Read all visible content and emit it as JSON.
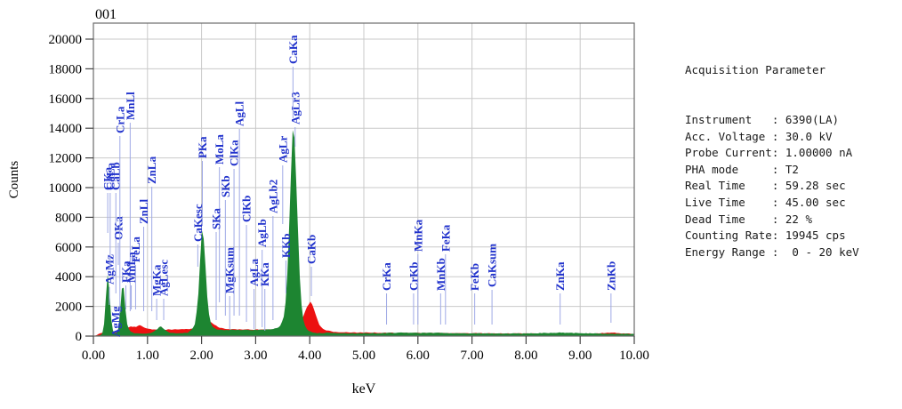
{
  "title": "001",
  "axes": {
    "x_label": "keV",
    "y_label": "Counts",
    "x_ticks": [
      "0.00",
      "1.00",
      "2.00",
      "3.00",
      "4.00",
      "5.00",
      "6.00",
      "7.00",
      "8.00",
      "9.00",
      "10.00"
    ],
    "y_ticks": [
      "0",
      "2000",
      "4000",
      "6000",
      "8000",
      "10000",
      "12000",
      "14000",
      "16000",
      "18000",
      "20000"
    ]
  },
  "colors": {
    "series_green": "#1d8531",
    "series_red": "#ec1111",
    "label_blue": "#2233cc",
    "leader_line": "#9fабe8",
    "leader": "#9fa9e6",
    "grid": "#c9c9c9",
    "border": "#6b6b6b",
    "tick": "#444444",
    "axis_text": "#000000"
  },
  "chart_data": {
    "type": "area",
    "title": "001",
    "xlabel": "keV",
    "ylabel": "Counts",
    "x_range": [
      0,
      10
    ],
    "y_range": [
      0,
      20000
    ],
    "grid": true,
    "series": [
      {
        "name": "spectrum-red",
        "color": "#ec1111",
        "points": [
          [
            0,
            30
          ],
          [
            0.05,
            60
          ],
          [
            0.1,
            150
          ],
          [
            0.15,
            220
          ],
          [
            0.2,
            260
          ],
          [
            0.28,
            240
          ],
          [
            0.35,
            230
          ],
          [
            0.42,
            260
          ],
          [
            0.5,
            330
          ],
          [
            0.58,
            450
          ],
          [
            0.65,
            620
          ],
          [
            0.7,
            700
          ],
          [
            0.75,
            620
          ],
          [
            0.8,
            650
          ],
          [
            0.85,
            720
          ],
          [
            0.9,
            640
          ],
          [
            0.97,
            520
          ],
          [
            1.05,
            470
          ],
          [
            1.15,
            440
          ],
          [
            1.3,
            430
          ],
          [
            1.5,
            450
          ],
          [
            1.7,
            460
          ],
          [
            1.85,
            500
          ],
          [
            1.95,
            560
          ],
          [
            2.05,
            700
          ],
          [
            2.12,
            900
          ],
          [
            2.17,
            950
          ],
          [
            2.22,
            820
          ],
          [
            2.3,
            620
          ],
          [
            2.4,
            520
          ],
          [
            2.5,
            470
          ],
          [
            2.7,
            450
          ],
          [
            2.9,
            440
          ],
          [
            3.1,
            440
          ],
          [
            3.3,
            460
          ],
          [
            3.5,
            520
          ],
          [
            3.65,
            620
          ],
          [
            3.78,
            800
          ],
          [
            3.88,
            1350
          ],
          [
            3.95,
            1950
          ],
          [
            4.01,
            2350
          ],
          [
            4.07,
            1900
          ],
          [
            4.13,
            1150
          ],
          [
            4.2,
            620
          ],
          [
            4.3,
            380
          ],
          [
            4.45,
            290
          ],
          [
            4.6,
            260
          ],
          [
            4.8,
            240
          ],
          [
            5.2,
            230
          ],
          [
            5.6,
            220
          ],
          [
            6.0,
            215
          ],
          [
            6.5,
            205
          ],
          [
            7.0,
            195
          ],
          [
            7.5,
            185
          ],
          [
            8.0,
            178
          ],
          [
            8.5,
            172
          ],
          [
            9.0,
            168
          ],
          [
            9.3,
            170
          ],
          [
            9.5,
            230
          ],
          [
            9.62,
            250
          ],
          [
            9.75,
            190
          ],
          [
            10,
            160
          ]
        ]
      },
      {
        "name": "spectrum-green",
        "color": "#1d8531",
        "points": [
          [
            0,
            30
          ],
          [
            0.1,
            50
          ],
          [
            0.13,
            60
          ],
          [
            0.17,
            200
          ],
          [
            0.2,
            900
          ],
          [
            0.23,
            2600
          ],
          [
            0.26,
            4250
          ],
          [
            0.29,
            3400
          ],
          [
            0.32,
            1500
          ],
          [
            0.35,
            500
          ],
          [
            0.38,
            220
          ],
          [
            0.42,
            180
          ],
          [
            0.45,
            300
          ],
          [
            0.48,
            900
          ],
          [
            0.51,
            2400
          ],
          [
            0.535,
            3650
          ],
          [
            0.56,
            3300
          ],
          [
            0.59,
            1900
          ],
          [
            0.62,
            900
          ],
          [
            0.66,
            450
          ],
          [
            0.7,
            280
          ],
          [
            0.76,
            200
          ],
          [
            0.82,
            170
          ],
          [
            0.9,
            160
          ],
          [
            1.0,
            170
          ],
          [
            1.1,
            260
          ],
          [
            1.18,
            480
          ],
          [
            1.24,
            640
          ],
          [
            1.3,
            520
          ],
          [
            1.36,
            300
          ],
          [
            1.45,
            210
          ],
          [
            1.55,
            190
          ],
          [
            1.65,
            190
          ],
          [
            1.75,
            240
          ],
          [
            1.82,
            450
          ],
          [
            1.87,
            700
          ],
          [
            1.9,
            1300
          ],
          [
            1.94,
            2800
          ],
          [
            1.97,
            5000
          ],
          [
            2.0,
            7000
          ],
          [
            2.013,
            7250
          ],
          [
            2.04,
            6400
          ],
          [
            2.07,
            4800
          ],
          [
            2.1,
            2900
          ],
          [
            2.13,
            1600
          ],
          [
            2.17,
            900
          ],
          [
            2.21,
            600
          ],
          [
            2.26,
            480
          ],
          [
            2.32,
            430
          ],
          [
            2.45,
            415
          ],
          [
            2.6,
            420
          ],
          [
            2.75,
            410
          ],
          [
            2.9,
            415
          ],
          [
            3.05,
            420
          ],
          [
            3.2,
            440
          ],
          [
            3.3,
            470
          ],
          [
            3.4,
            520
          ],
          [
            3.46,
            700
          ],
          [
            3.52,
            1300
          ],
          [
            3.56,
            2500
          ],
          [
            3.6,
            5200
          ],
          [
            3.64,
            9500
          ],
          [
            3.67,
            13000
          ],
          [
            3.692,
            14250
          ],
          [
            3.72,
            13200
          ],
          [
            3.76,
            9800
          ],
          [
            3.8,
            5200
          ],
          [
            3.84,
            2400
          ],
          [
            3.88,
            1100
          ],
          [
            3.92,
            600
          ],
          [
            3.97,
            380
          ],
          [
            4.02,
            280
          ],
          [
            4.1,
            200
          ],
          [
            4.25,
            210
          ],
          [
            4.4,
            230
          ],
          [
            4.55,
            200
          ],
          [
            4.7,
            180
          ],
          [
            4.9,
            185
          ],
          [
            5.1,
            190
          ],
          [
            5.3,
            195
          ],
          [
            5.45,
            210
          ],
          [
            5.6,
            230
          ],
          [
            5.75,
            235
          ],
          [
            5.9,
            220
          ],
          [
            6.1,
            215
          ],
          [
            6.3,
            220
          ],
          [
            6.45,
            215
          ],
          [
            6.6,
            200
          ],
          [
            6.8,
            190
          ],
          [
            7.0,
            185
          ],
          [
            7.2,
            180
          ],
          [
            7.4,
            180
          ],
          [
            7.6,
            175
          ],
          [
            7.8,
            175
          ],
          [
            8.0,
            180
          ],
          [
            8.2,
            195
          ],
          [
            8.4,
            215
          ],
          [
            8.55,
            230
          ],
          [
            8.64,
            240
          ],
          [
            8.75,
            225
          ],
          [
            8.9,
            205
          ],
          [
            9.05,
            195
          ],
          [
            9.2,
            185
          ],
          [
            9.35,
            175
          ],
          [
            9.5,
            170
          ],
          [
            9.65,
            165
          ],
          [
            9.8,
            160
          ],
          [
            10,
            155
          ]
        ]
      }
    ],
    "peak_labels": [
      {
        "t": "AgMz",
        "k": 0.295,
        "b": 320,
        "l": 343
      },
      {
        "t": "AgMg",
        "k": 0.415,
        "b": 379,
        "l": null
      },
      {
        "t": "CKa",
        "k": 0.265,
        "b": 214,
        "l": 262
      },
      {
        "t": "CaLa",
        "k": 0.31,
        "b": 214,
        "l": 300
      },
      {
        "t": "CaLb",
        "k": 0.415,
        "b": 214,
        "l": 330
      },
      {
        "t": "OKa",
        "k": 0.46,
        "b": 270,
        "l": 298
      },
      {
        "t": "CrLa",
        "k": 0.49,
        "b": 150,
        "l": 352
      },
      {
        "t": "MnLl",
        "k": 0.68,
        "b": 135,
        "l": 350
      },
      {
        "t": "FKa",
        "k": 0.6,
        "b": 318,
        "l": 348
      },
      {
        "t": "MnLa",
        "k": 0.7,
        "b": 318,
        "l": 348
      },
      {
        "t": "FeLa",
        "k": 0.78,
        "b": 295,
        "l": 348
      },
      {
        "t": "ZnLl",
        "k": 0.93,
        "b": 252,
        "l": 350
      },
      {
        "t": "ZnLa",
        "k": 1.08,
        "b": 207,
        "l": 350
      },
      {
        "t": "MgKa",
        "k": 1.17,
        "b": 333,
        "l": 360
      },
      {
        "t": "AgLesc",
        "k": 1.3,
        "b": 333,
        "l": 360
      },
      {
        "t": "CaKesc",
        "k": 1.93,
        "b": 272,
        "l": 300
      },
      {
        "t": "PKa",
        "k": 2.015,
        "b": 178,
        "l": 254
      },
      {
        "t": "MoLa",
        "k": 2.33,
        "b": 185,
        "l": 340
      },
      {
        "t": "SKb",
        "k": 2.44,
        "b": 222,
        "l": 355
      },
      {
        "t": "SKa",
        "k": 2.27,
        "b": 258,
        "l": 360
      },
      {
        "t": "MgKsum",
        "k": 2.52,
        "b": 330,
        "l": 370
      },
      {
        "t": "ClKa",
        "k": 2.6,
        "b": 187,
        "l": 355
      },
      {
        "t": "AgLl",
        "k": 2.7,
        "b": 142,
        "l": 355
      },
      {
        "t": "ClKb",
        "k": 2.83,
        "b": 250,
        "l": 362
      },
      {
        "t": "AgLa",
        "k": 2.97,
        "b": 322,
        "l": 370
      },
      {
        "t": "AgLb",
        "k": 3.12,
        "b": 278,
        "l": 368
      },
      {
        "t": "KKa",
        "k": 3.17,
        "b": 322,
        "l": 372
      },
      {
        "t": "AgLb2",
        "k": 3.32,
        "b": 240,
        "l": 360
      },
      {
        "t": "KKb",
        "k": 3.56,
        "b": 290,
        "l": 330
      },
      {
        "t": "AgLr",
        "k": 3.5,
        "b": 183,
        "l": 252
      },
      {
        "t": "AgLr3",
        "k": 3.73,
        "b": 140,
        "l": 165
      },
      {
        "t": "CaKa",
        "k": 3.69,
        "b": 72,
        "l": 133
      },
      {
        "t": "CaKb",
        "k": 4.03,
        "b": 297,
        "l": 333
      },
      {
        "t": "CrKa",
        "k": 5.42,
        "b": 327,
        "l": 365
      },
      {
        "t": "CrKb",
        "k": 5.92,
        "b": 327,
        "l": 365
      },
      {
        "t": "MnKa",
        "k": 6.0,
        "b": 283,
        "l": 365
      },
      {
        "t": "MnKb",
        "k": 6.42,
        "b": 327,
        "l": 365
      },
      {
        "t": "FeKa",
        "k": 6.51,
        "b": 283,
        "l": 365
      },
      {
        "t": "FeKb",
        "k": 7.05,
        "b": 327,
        "l": 365
      },
      {
        "t": "CaKsum",
        "k": 7.37,
        "b": 323,
        "l": 365
      },
      {
        "t": "ZnKa",
        "k": 8.63,
        "b": 327,
        "l": 365
      },
      {
        "t": "ZnKb",
        "k": 9.57,
        "b": 327,
        "l": 363
      }
    ]
  },
  "acquisition": {
    "title": "Acquisition Parameter",
    "rows": [
      {
        "label": "Instrument",
        "value": "6390(LA)"
      },
      {
        "label": "Acc. Voltage",
        "value": "30.0 kV"
      },
      {
        "label": "Probe Current",
        "value": "1.00000 nA"
      },
      {
        "label": "PHA mode",
        "value": "T2"
      },
      {
        "label": "Real Time",
        "value": "59.28 sec"
      },
      {
        "label": "Live Time",
        "value": "45.00 sec"
      },
      {
        "label": "Dead Time",
        "value": "22 %"
      },
      {
        "label": "Counting Rate",
        "value": "19945 cps"
      },
      {
        "label": "Energy Range",
        "value": " 0 - 20 keV"
      }
    ]
  }
}
